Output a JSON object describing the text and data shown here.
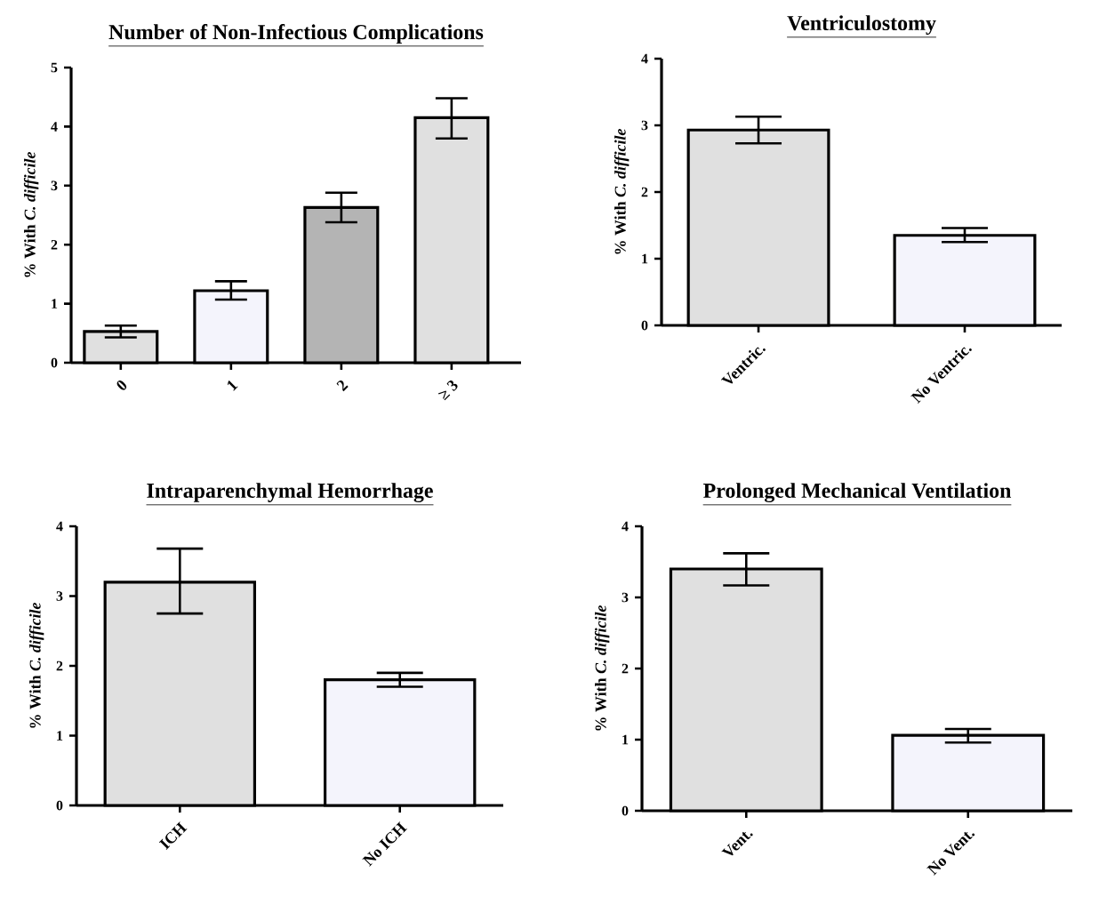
{
  "chart_data": [
    {
      "type": "bar",
      "title": "Number of Non-Infectious Complications",
      "ylabel": "% With *C. difficile*",
      "categories": [
        "0",
        "1",
        "2",
        "≥ 3"
      ],
      "values": [
        0.53,
        1.22,
        2.63,
        4.15
      ],
      "colors": [
        "#e0e0e0",
        "#f4f4fc",
        "#b4b4b4",
        "#e0e0e0"
      ],
      "errors": [
        [
          0.43,
          0.63
        ],
        [
          1.07,
          1.38
        ],
        [
          2.38,
          2.88
        ],
        [
          3.8,
          4.48
        ]
      ],
      "ylim": [
        0,
        5
      ],
      "yticks": [
        0,
        1,
        2,
        3,
        4,
        5
      ]
    },
    {
      "type": "bar",
      "title": "Ventriculostomy",
      "ylabel": "% With *C. difficile*",
      "categories": [
        "Ventric.",
        "No Ventric."
      ],
      "values": [
        2.93,
        1.35
      ],
      "colors": [
        "#e0e0e0",
        "#f4f4fc"
      ],
      "errors": [
        [
          2.73,
          3.13
        ],
        [
          1.25,
          1.46
        ]
      ],
      "ylim": [
        0,
        4
      ],
      "yticks": [
        0,
        1,
        2,
        3,
        4
      ]
    },
    {
      "type": "bar",
      "title": "Intraparenchymal Hemorrhage",
      "ylabel": "% With *C. difficile*",
      "categories": [
        "ICH",
        "No ICH"
      ],
      "values": [
        3.2,
        1.8
      ],
      "colors": [
        "#e0e0e0",
        "#f4f4fc"
      ],
      "errors": [
        [
          2.75,
          3.68
        ],
        [
          1.7,
          1.9
        ]
      ],
      "ylim": [
        0,
        4
      ],
      "yticks": [
        0,
        1,
        2,
        3,
        4
      ]
    },
    {
      "type": "bar",
      "title": "Prolonged Mechanical Ventilation",
      "ylabel": "% With *C. difficile*",
      "categories": [
        "Vent.",
        "No Vent."
      ],
      "values": [
        3.4,
        1.06
      ],
      "colors": [
        "#e0e0e0",
        "#f4f4fc"
      ],
      "errors": [
        [
          3.17,
          3.62
        ],
        [
          0.96,
          1.15
        ]
      ],
      "ylim": [
        0,
        4
      ],
      "yticks": [
        0,
        1,
        2,
        3,
        4
      ]
    }
  ]
}
